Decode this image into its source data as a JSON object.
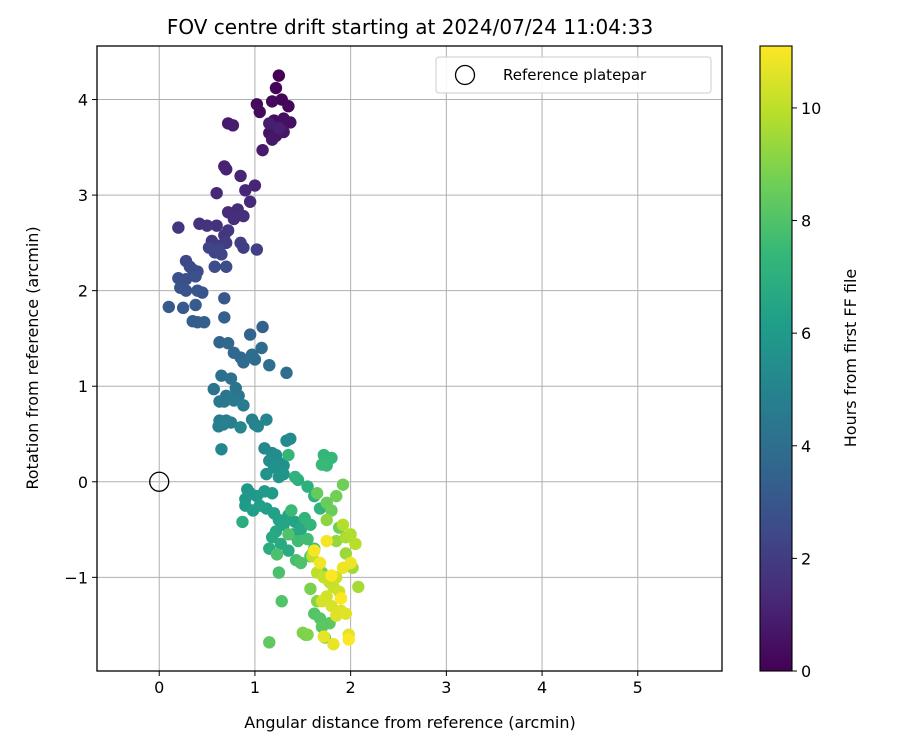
{
  "chart_data": {
    "type": "scatter",
    "title": "FOV centre drift starting at 2024/07/24 11:04:33",
    "xlabel": "Angular distance from reference (arcmin)",
    "ylabel": "Rotation from reference (arcmin)",
    "xlim": [
      -0.65,
      5.88
    ],
    "ylim": [
      -1.98,
      4.56
    ],
    "xticks": [
      0,
      1,
      2,
      3,
      4,
      5
    ],
    "yticks": [
      -1,
      0,
      1,
      2,
      3,
      4
    ],
    "grid": true,
    "legend": {
      "position": "top-right",
      "entries": [
        "Reference platepar"
      ]
    },
    "reference_point": {
      "x": 0,
      "y": 0
    },
    "colorbar": {
      "label": "Hours from first FF file",
      "range": [
        0,
        11.1
      ],
      "ticks": [
        0,
        2,
        4,
        6,
        8,
        10
      ],
      "colormap": [
        "#440154",
        "#482777",
        "#3e4989",
        "#31688e",
        "#26828e",
        "#1f9e89",
        "#35b779",
        "#6ece58",
        "#b5de2b",
        "#fde725"
      ]
    },
    "points": [
      [
        1.25,
        4.25,
        0.05
      ],
      [
        1.22,
        4.12,
        0.1
      ],
      [
        1.28,
        4.0,
        0.15
      ],
      [
        1.35,
        3.93,
        0.2
      ],
      [
        1.18,
        3.98,
        0.25
      ],
      [
        1.02,
        3.95,
        0.3
      ],
      [
        1.05,
        3.87,
        0.35
      ],
      [
        1.2,
        3.78,
        0.4
      ],
      [
        1.3,
        3.8,
        0.45
      ],
      [
        1.37,
        3.76,
        0.5
      ],
      [
        1.25,
        3.72,
        0.55
      ],
      [
        1.15,
        3.65,
        0.6
      ],
      [
        1.22,
        3.62,
        0.65
      ],
      [
        1.3,
        3.66,
        0.7
      ],
      [
        1.18,
        3.58,
        0.75
      ],
      [
        1.08,
        3.47,
        0.8
      ],
      [
        0.72,
        3.75,
        0.85
      ],
      [
        0.77,
        3.73,
        0.9
      ],
      [
        1.15,
        3.75,
        0.95
      ],
      [
        1.25,
        3.7,
        1.0
      ],
      [
        0.68,
        3.3,
        1.05
      ],
      [
        0.7,
        3.27,
        1.1
      ],
      [
        0.85,
        3.2,
        1.15
      ],
      [
        1.0,
        3.1,
        1.2
      ],
      [
        0.9,
        3.05,
        1.25
      ],
      [
        0.6,
        3.02,
        1.3
      ],
      [
        0.95,
        2.93,
        1.35
      ],
      [
        0.72,
        2.82,
        1.4
      ],
      [
        0.82,
        2.85,
        1.45
      ],
      [
        0.78,
        2.75,
        1.5
      ],
      [
        0.88,
        2.78,
        1.55
      ],
      [
        0.6,
        2.68,
        1.6
      ],
      [
        0.42,
        2.7,
        1.65
      ],
      [
        0.5,
        2.68,
        1.7
      ],
      [
        0.2,
        2.66,
        1.75
      ],
      [
        0.68,
        2.58,
        1.8
      ],
      [
        0.72,
        2.63,
        1.85
      ],
      [
        0.55,
        2.52,
        1.9
      ],
      [
        0.62,
        2.47,
        1.95
      ],
      [
        0.7,
        2.5,
        2.0
      ],
      [
        0.85,
        2.5,
        2.05
      ],
      [
        0.88,
        2.45,
        2.1
      ],
      [
        1.02,
        2.43,
        2.15
      ],
      [
        0.58,
        2.4,
        2.2
      ],
      [
        0.52,
        2.45,
        2.25
      ],
      [
        0.62,
        2.43,
        2.3
      ],
      [
        0.65,
        2.38,
        2.35
      ],
      [
        0.28,
        2.31,
        2.4
      ],
      [
        0.32,
        2.25,
        2.45
      ],
      [
        0.4,
        2.2,
        2.5
      ],
      [
        0.35,
        2.22,
        2.55
      ],
      [
        0.58,
        2.25,
        2.6
      ],
      [
        0.7,
        2.25,
        2.65
      ],
      [
        0.2,
        2.13,
        2.7
      ],
      [
        0.28,
        2.12,
        2.75
      ],
      [
        0.38,
        2.15,
        2.8
      ],
      [
        0.22,
        2.03,
        2.85
      ],
      [
        0.28,
        2.0,
        2.9
      ],
      [
        0.45,
        1.98,
        2.95
      ],
      [
        0.4,
        2.0,
        3.0
      ],
      [
        0.68,
        1.92,
        3.05
      ],
      [
        0.1,
        1.83,
        3.1
      ],
      [
        0.25,
        1.82,
        3.15
      ],
      [
        0.38,
        1.85,
        3.2
      ],
      [
        0.35,
        1.68,
        3.25
      ],
      [
        0.4,
        1.67,
        3.3
      ],
      [
        0.47,
        1.67,
        3.35
      ],
      [
        0.68,
        1.72,
        3.4
      ],
      [
        1.08,
        1.62,
        3.5
      ],
      [
        0.95,
        1.54,
        3.55
      ],
      [
        0.63,
        1.46,
        3.6
      ],
      [
        0.72,
        1.45,
        3.65
      ],
      [
        0.78,
        1.35,
        3.7
      ],
      [
        0.85,
        1.3,
        3.75
      ],
      [
        0.88,
        1.25,
        3.8
      ],
      [
        1.0,
        1.28,
        3.85
      ],
      [
        1.07,
        1.4,
        3.9
      ],
      [
        0.97,
        1.33,
        3.95
      ],
      [
        1.15,
        1.22,
        4.0
      ],
      [
        1.33,
        1.14,
        4.05
      ],
      [
        0.65,
        1.11,
        4.1
      ],
      [
        0.75,
        1.08,
        4.15
      ],
      [
        0.57,
        0.97,
        4.2
      ],
      [
        0.8,
        0.98,
        4.25
      ],
      [
        0.7,
        0.9,
        4.3
      ],
      [
        0.83,
        0.9,
        4.35
      ],
      [
        0.68,
        0.84,
        4.4
      ],
      [
        0.63,
        0.84,
        4.45
      ],
      [
        0.75,
        0.87,
        4.5
      ],
      [
        0.78,
        0.85,
        4.55
      ],
      [
        0.88,
        0.8,
        4.6
      ],
      [
        0.63,
        0.64,
        4.65
      ],
      [
        0.7,
        0.64,
        4.7
      ],
      [
        0.75,
        0.62,
        4.75
      ],
      [
        0.62,
        0.58,
        4.8
      ],
      [
        0.67,
        0.6,
        4.85
      ],
      [
        0.97,
        0.65,
        4.9
      ],
      [
        1.0,
        0.6,
        4.95
      ],
      [
        1.03,
        0.58,
        5.0
      ],
      [
        1.12,
        0.65,
        5.05
      ],
      [
        0.85,
        0.57,
        5.1
      ],
      [
        0.65,
        0.34,
        5.15
      ],
      [
        1.1,
        0.35,
        5.2
      ],
      [
        1.33,
        0.43,
        5.25
      ],
      [
        1.37,
        0.45,
        5.3
      ],
      [
        1.18,
        0.3,
        5.35
      ],
      [
        1.22,
        0.28,
        5.4
      ],
      [
        1.15,
        0.22,
        5.45
      ],
      [
        1.25,
        0.2,
        5.5
      ],
      [
        1.3,
        0.17,
        5.55
      ],
      [
        1.2,
        0.15,
        5.6
      ],
      [
        1.12,
        0.08,
        5.65
      ],
      [
        1.25,
        0.05,
        5.7
      ],
      [
        1.3,
        0.08,
        5.75
      ],
      [
        0.92,
        -0.08,
        5.8
      ],
      [
        0.95,
        -0.12,
        5.85
      ],
      [
        0.9,
        -0.18,
        5.9
      ],
      [
        1.02,
        -0.15,
        5.95
      ],
      [
        1.1,
        -0.1,
        6.0
      ],
      [
        1.18,
        -0.12,
        6.05
      ],
      [
        0.9,
        -0.25,
        6.1
      ],
      [
        0.98,
        -0.3,
        6.15
      ],
      [
        1.05,
        -0.25,
        6.2
      ],
      [
        1.12,
        -0.28,
        6.25
      ],
      [
        1.2,
        -0.33,
        6.3
      ],
      [
        1.25,
        -0.4,
        6.35
      ],
      [
        1.35,
        -0.35,
        6.4
      ],
      [
        1.42,
        -0.42,
        6.45
      ],
      [
        1.3,
        -0.45,
        6.5
      ],
      [
        1.22,
        -0.52,
        6.55
      ],
      [
        1.4,
        -0.55,
        6.6
      ],
      [
        1.48,
        -0.5,
        6.65
      ],
      [
        1.18,
        -0.58,
        6.7
      ],
      [
        1.27,
        -0.65,
        6.75
      ],
      [
        1.35,
        -0.72,
        6.8
      ],
      [
        1.15,
        -0.7,
        6.85
      ],
      [
        0.87,
        -0.42,
        6.9
      ],
      [
        1.45,
        0.02,
        6.95
      ],
      [
        1.55,
        -0.05,
        7.0
      ],
      [
        1.62,
        -0.15,
        7.05
      ],
      [
        1.42,
        0.05,
        7.1
      ],
      [
        1.68,
        -0.28,
        7.15
      ],
      [
        1.52,
        -0.38,
        7.2
      ],
      [
        1.58,
        -0.45,
        7.25
      ],
      [
        1.35,
        0.28,
        7.3
      ],
      [
        1.72,
        0.28,
        7.35
      ],
      [
        1.8,
        0.25,
        7.4
      ],
      [
        1.75,
        0.17,
        7.45
      ],
      [
        1.7,
        0.18,
        7.5
      ],
      [
        1.38,
        -0.3,
        7.55
      ],
      [
        1.45,
        -0.62,
        7.6
      ],
      [
        1.55,
        -0.6,
        7.65
      ],
      [
        1.62,
        -0.7,
        7.7
      ],
      [
        1.58,
        -0.78,
        7.75
      ],
      [
        1.43,
        -0.82,
        7.8
      ],
      [
        1.25,
        -0.95,
        7.85
      ],
      [
        1.23,
        -0.76,
        7.9
      ],
      [
        1.48,
        -0.85,
        7.95
      ],
      [
        1.35,
        -0.55,
        8.0
      ],
      [
        1.28,
        -1.25,
        8.05
      ],
      [
        1.62,
        -1.38,
        8.1
      ],
      [
        1.68,
        -1.43,
        8.15
      ],
      [
        1.7,
        -1.52,
        8.2
      ],
      [
        1.78,
        -1.48,
        8.25
      ],
      [
        1.15,
        -1.68,
        8.3
      ],
      [
        1.53,
        -1.6,
        8.35
      ],
      [
        1.73,
        -1.63,
        8.4
      ],
      [
        1.65,
        -0.12,
        8.45
      ],
      [
        1.75,
        -0.22,
        8.5
      ],
      [
        1.8,
        -0.3,
        8.55
      ],
      [
        1.88,
        -0.48,
        8.6
      ],
      [
        1.92,
        -0.03,
        8.65
      ],
      [
        1.85,
        -0.15,
        8.7
      ],
      [
        1.7,
        -0.95,
        8.75
      ],
      [
        1.78,
        -1.05,
        8.8
      ],
      [
        1.58,
        -1.12,
        8.85
      ],
      [
        1.5,
        -1.58,
        8.9
      ],
      [
        1.55,
        -1.6,
        8.95
      ],
      [
        1.65,
        -1.25,
        9.0
      ],
      [
        1.6,
        -0.75,
        9.1
      ],
      [
        1.75,
        -0.4,
        9.2
      ],
      [
        1.85,
        -0.62,
        9.3
      ],
      [
        1.95,
        -0.75,
        9.4
      ],
      [
        2.02,
        -0.9,
        9.5
      ],
      [
        2.08,
        -1.1,
        9.6
      ],
      [
        1.95,
        -0.58,
        9.7
      ],
      [
        2.0,
        -0.55,
        9.8
      ],
      [
        1.92,
        -0.45,
        9.85
      ],
      [
        2.05,
        -0.65,
        9.9
      ],
      [
        1.6,
        -0.78,
        10.0
      ],
      [
        1.65,
        -0.95,
        10.05
      ],
      [
        1.72,
        -1.0,
        10.1
      ],
      [
        1.78,
        -1.05,
        10.15
      ],
      [
        1.82,
        -1.1,
        10.2
      ],
      [
        1.85,
        -1.0,
        10.25
      ],
      [
        1.88,
        -1.15,
        10.3
      ],
      [
        1.75,
        -1.2,
        10.35
      ],
      [
        1.7,
        -1.25,
        10.4
      ],
      [
        1.8,
        -1.3,
        10.45
      ],
      [
        1.9,
        -1.35,
        10.5
      ],
      [
        1.85,
        -1.4,
        10.55
      ],
      [
        1.95,
        -1.38,
        10.6
      ],
      [
        1.98,
        -1.6,
        10.65
      ],
      [
        1.72,
        -1.62,
        10.7
      ],
      [
        1.82,
        -1.7,
        10.75
      ],
      [
        1.92,
        -0.9,
        10.8
      ],
      [
        2.0,
        -0.85,
        10.85
      ],
      [
        1.68,
        -0.85,
        10.9
      ],
      [
        1.75,
        -0.62,
        10.95
      ],
      [
        1.62,
        -0.72,
        11.0
      ],
      [
        1.98,
        -1.65,
        11.05
      ],
      [
        1.9,
        -1.22,
        11.08
      ],
      [
        1.8,
        -0.98,
        11.1
      ]
    ]
  }
}
